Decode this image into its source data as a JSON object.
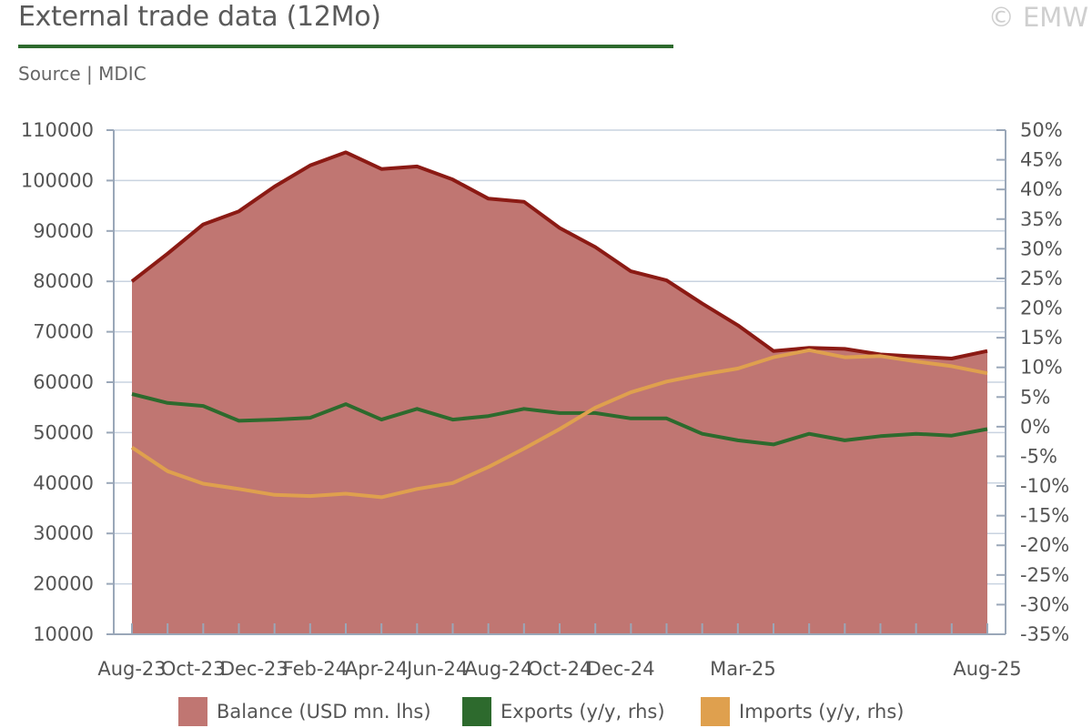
{
  "header": {
    "title": "External trade data (12Mo)",
    "copyright": "© EMW",
    "source": "Source | MDIC"
  },
  "colors": {
    "accent_rule": "#2d6a2d",
    "balance_fill": "#c07672",
    "balance_line": "#8b1a14",
    "exports": "#2d6a2d",
    "imports": "#dfa04e",
    "grid": "#c9d3e0",
    "axis": "#9aa7b8"
  },
  "legend": [
    {
      "label": "Balance (USD mn. lhs)",
      "swatch": "#c07672"
    },
    {
      "label": "Exports (y/y, rhs)",
      "swatch": "#2d6a2d"
    },
    {
      "label": "Imports (y/y, rhs)",
      "swatch": "#dfa04e"
    }
  ],
  "chart_data": {
    "type": "area",
    "x": [
      "Aug-23",
      "Sep-23",
      "Oct-23",
      "Nov-23",
      "Dec-23",
      "Jan-24",
      "Feb-24",
      "Mar-24",
      "Apr-24",
      "May-24",
      "Jun-24",
      "Jul-24",
      "Aug-24",
      "Sep-24",
      "Oct-24",
      "Nov-24",
      "Dec-24",
      "Jan-25",
      "Feb-25",
      "Mar-25",
      "Apr-25",
      "May-25",
      "Jun-25",
      "Jul-25",
      "Aug-25"
    ],
    "x_tick_labels": [
      "Aug-23",
      "Oct-23",
      "Dec-23",
      "Feb-24",
      "Apr-24",
      "Jun-24",
      "Aug-24",
      "Oct-24",
      "Dec-24",
      "",
      "Mar-25",
      "",
      "",
      "",
      "Aug-25"
    ],
    "left_axis": {
      "ylim": [
        10000,
        110000
      ],
      "ticks": [
        "10000",
        "20000",
        "30000",
        "40000",
        "50000",
        "60000",
        "70000",
        "80000",
        "90000",
        "100000",
        "110000"
      ]
    },
    "right_axis": {
      "ylim": [
        -35,
        50
      ],
      "ticks": [
        "-35%",
        "-30%",
        "-25%",
        "-20%",
        "-15%",
        "-10%",
        "-5%",
        "0%",
        "5%",
        "10%",
        "15%",
        "20%",
        "25%",
        "30%",
        "35%",
        "40%",
        "45%",
        "50%"
      ]
    },
    "series": [
      {
        "name": "Balance (USD mn. lhs)",
        "axis": "left",
        "kind": "area",
        "values": [
          80000,
          85500,
          91300,
          93900,
          98800,
          103000,
          105600,
          102300,
          102800,
          100200,
          96400,
          95800,
          90600,
          86800,
          82000,
          80200,
          75600,
          71300,
          66200,
          66800,
          66600,
          65500,
          65100,
          64700,
          66200
        ]
      },
      {
        "name": "Exports (y/y, rhs)",
        "axis": "right",
        "kind": "line",
        "values": [
          5.5,
          4.0,
          3.5,
          1.0,
          1.2,
          1.5,
          3.8,
          1.2,
          3.0,
          1.2,
          1.8,
          3.0,
          2.3,
          2.3,
          1.4,
          1.4,
          -1.2,
          -2.3,
          -3.0,
          -1.2,
          -2.3,
          -1.6,
          -1.2,
          -1.5,
          -0.4
        ]
      },
      {
        "name": "Imports (y/y, rhs)",
        "axis": "right",
        "kind": "line",
        "values": [
          -3.5,
          -7.5,
          -9.6,
          -10.5,
          -11.5,
          -11.7,
          -11.3,
          -11.9,
          -10.5,
          -9.5,
          -6.8,
          -3.7,
          -0.4,
          3.2,
          5.8,
          7.6,
          8.8,
          9.8,
          11.7,
          12.9,
          11.7,
          11.9,
          11.0,
          10.2,
          9.0
        ]
      }
    ]
  }
}
